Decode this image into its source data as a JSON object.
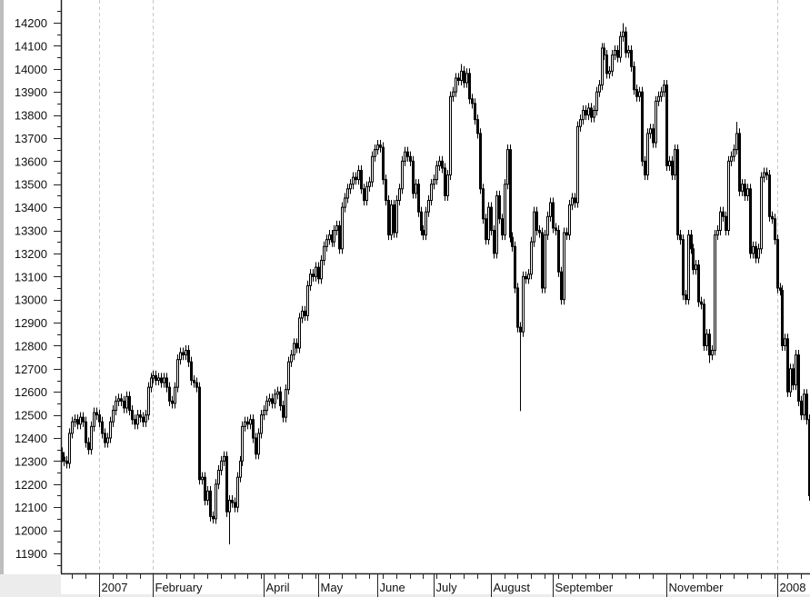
{
  "chart_data": {
    "type": "candlestick",
    "title": "",
    "xlabel": "",
    "ylabel": "",
    "ylim": [
      11850,
      14250
    ],
    "y_ticks": [
      11900,
      12000,
      12100,
      12200,
      12300,
      12400,
      12500,
      12600,
      12700,
      12800,
      12900,
      13000,
      13100,
      13200,
      13300,
      13400,
      13500,
      13600,
      13700,
      13800,
      13900,
      14000,
      14100,
      14200
    ],
    "y_tick_labels": [
      "11900",
      "12000",
      "12100",
      "12200",
      "12300",
      "12400",
      "12500",
      "12600",
      "12700",
      "12800",
      "12900",
      "13000",
      "13100",
      "13200",
      "13300",
      "13400",
      "13500",
      "13600",
      "13700",
      "13800",
      "13900",
      "14000",
      "14100",
      "14200"
    ],
    "x_ticks": [
      {
        "label": "2007",
        "bar": 14,
        "gridline": true
      },
      {
        "label": "February",
        "bar": 34,
        "gridline": true
      },
      {
        "label": "April",
        "bar": 75,
        "gridline": false
      },
      {
        "label": "May",
        "bar": 95,
        "gridline": false
      },
      {
        "label": "June",
        "bar": 117,
        "gridline": false
      },
      {
        "label": "July",
        "bar": 138,
        "gridline": false
      },
      {
        "label": "August",
        "bar": 159,
        "gridline": false
      },
      {
        "label": "September",
        "bar": 182,
        "gridline": false
      },
      {
        "label": "November",
        "bar": 224,
        "gridline": false
      },
      {
        "label": "2008",
        "bar": 265,
        "gridline": true
      }
    ],
    "grid": "dashed vertical lines at year/February boundaries",
    "colors": {
      "up": "#ffffff",
      "down": "#000000",
      "outline": "#000000",
      "grid": "#c8c8c8"
    },
    "close": [
      12317,
      12300,
      12290,
      12420,
      12470,
      12480,
      12460,
      12490,
      12470,
      12380,
      12350,
      12450,
      12510,
      12500,
      12470,
      12420,
      12380,
      12400,
      12470,
      12520,
      12560,
      12570,
      12560,
      12530,
      12580,
      12520,
      12480,
      12460,
      12500,
      12490,
      12470,
      12500,
      12620,
      12660,
      12670,
      12650,
      12660,
      12640,
      12660,
      12620,
      12560,
      12550,
      12620,
      12740,
      12770,
      12760,
      12780,
      12730,
      12650,
      12640,
      12620,
      12220,
      12230,
      12130,
      12170,
      12060,
      12050,
      12200,
      12260,
      12300,
      12320,
      12080,
      12130,
      12120,
      12100,
      12230,
      12300,
      12450,
      12470,
      12460,
      12480,
      12400,
      12330,
      12420,
      12500,
      12520,
      12560,
      12570,
      12550,
      12590,
      12600,
      12540,
      12490,
      12610,
      12730,
      12760,
      12810,
      12790,
      12920,
      12950,
      12930,
      13060,
      13110,
      13100,
      13140,
      13090,
      13170,
      13230,
      13260,
      13280,
      13250,
      13300,
      13320,
      13220,
      13400,
      13440,
      13480,
      13500,
      13530,
      13520,
      13560,
      13480,
      13430,
      13490,
      13510,
      13620,
      13650,
      13670,
      13660,
      13520,
      13430,
      13280,
      13410,
      13290,
      13430,
      13480,
      13600,
      13640,
      13620,
      13600,
      13460,
      13500,
      13380,
      13300,
      13280,
      13380,
      13430,
      13500,
      13520,
      13580,
      13600,
      13570,
      13450,
      13540,
      13880,
      13900,
      13960,
      13950,
      13990,
      13940,
      13980,
      13870,
      13850,
      13780,
      13720,
      13480,
      13350,
      13260,
      13400,
      13300,
      13200,
      13450,
      13350,
      13280,
      13500,
      13650,
      13270,
      13230,
      13050,
      12880,
      12860,
      13100,
      13090,
      13110,
      13250,
      13380,
      13300,
      13290,
      13050,
      13280,
      13360,
      13420,
      13310,
      13300,
      13120,
      13000,
      13290,
      13280,
      13410,
      13440,
      13420,
      13750,
      13780,
      13820,
      13800,
      13830,
      13790,
      13820,
      13900,
      13930,
      14090,
      14060,
      13980,
      13990,
      14060,
      14080,
      14050,
      14140,
      14160,
      14070,
      14080,
      14010,
      13910,
      13880,
      13900,
      13600,
      13540,
      13720,
      13740,
      13680,
      13860,
      13880,
      13900,
      13930,
      13580,
      13600,
      13540,
      13650,
      13280,
      13260,
      13020,
      13000,
      13280,
      13220,
      13130,
      13150,
      12990,
      12980,
      12800,
      12850,
      12760,
      12780,
      13280,
      13300,
      13380,
      13360,
      13300,
      13600,
      13620,
      13650,
      13720,
      13470,
      13500,
      13450,
      13480,
      13200,
      13230,
      13180,
      13220,
      13530,
      13550,
      13540,
      13360,
      13350,
      13260,
      13050,
      13040,
      12800,
      12830,
      12600,
      12700,
      12630,
      12760,
      12560,
      12500,
      12590,
      12480,
      12150
    ],
    "notable_lows": [
      {
        "bar": 62,
        "low": 11939
      },
      {
        "bar": 170,
        "low": 12517
      },
      {
        "bar": 56,
        "low": 12030
      },
      {
        "bar": 240,
        "low": 12725
      }
    ],
    "notable_highs": [
      {
        "bar": 208,
        "high": 14198
      },
      {
        "bar": 148,
        "high": 14021
      },
      {
        "bar": 250,
        "high": 13770
      }
    ]
  }
}
